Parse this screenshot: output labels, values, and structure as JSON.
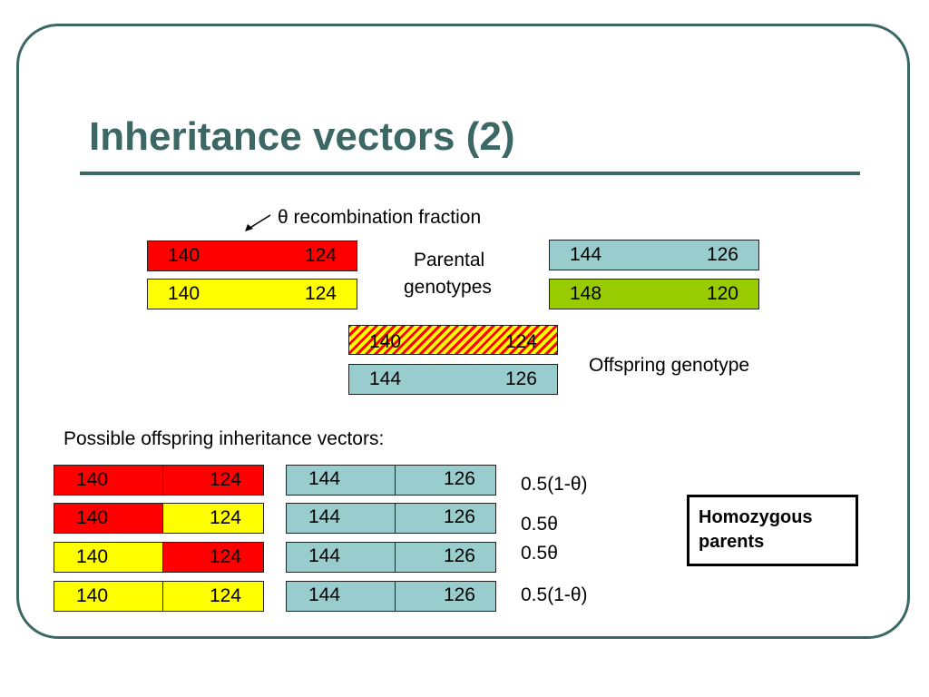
{
  "slide": {
    "title": "Inheritance vectors (2)",
    "annotation": "θ recombination fraction",
    "parental_label_line1": "Parental",
    "parental_label_line2": "genotypes",
    "offspring_label": "Offspring genotype",
    "possible_label": "Possible offspring inheritance vectors:",
    "note_line1": "Homozygous",
    "note_line2": "parents"
  },
  "parent1": {
    "chrom1": {
      "a": "140",
      "b": "124",
      "color": "#ff0000"
    },
    "chrom2": {
      "a": "140",
      "b": "124",
      "color": "#ffff00"
    }
  },
  "parent2": {
    "chrom1": {
      "a": "144",
      "b": "126",
      "color": "#99cccc"
    },
    "chrom2": {
      "a": "148",
      "b": "120",
      "color": "#99cc00"
    }
  },
  "offspring": {
    "chrom1": {
      "a": "140",
      "b": "124",
      "pattern": "red-yellow-stripes"
    },
    "chrom2": {
      "a": "144",
      "b": "126",
      "color": "#99cccc"
    }
  },
  "vectors": [
    {
      "left": {
        "a": "140",
        "b": "124",
        "a_color": "#ff0000",
        "b_color": "#ff0000"
      },
      "right": {
        "a": "144",
        "b": "126"
      },
      "prob": "0.5(1-θ)"
    },
    {
      "left": {
        "a": "140",
        "b": "124",
        "a_color": "#ff0000",
        "b_color": "#ffff00"
      },
      "right": {
        "a": "144",
        "b": "126"
      },
      "prob": "0.5θ"
    },
    {
      "left": {
        "a": "140",
        "b": "124",
        "a_color": "#ffff00",
        "b_color": "#ff0000"
      },
      "right": {
        "a": "144",
        "b": "126"
      },
      "prob": "0.5θ"
    },
    {
      "left": {
        "a": "140",
        "b": "124",
        "a_color": "#ffff00",
        "b_color": "#ffff00"
      },
      "right": {
        "a": "144",
        "b": "126"
      },
      "prob": "0.5(1-θ)"
    }
  ]
}
